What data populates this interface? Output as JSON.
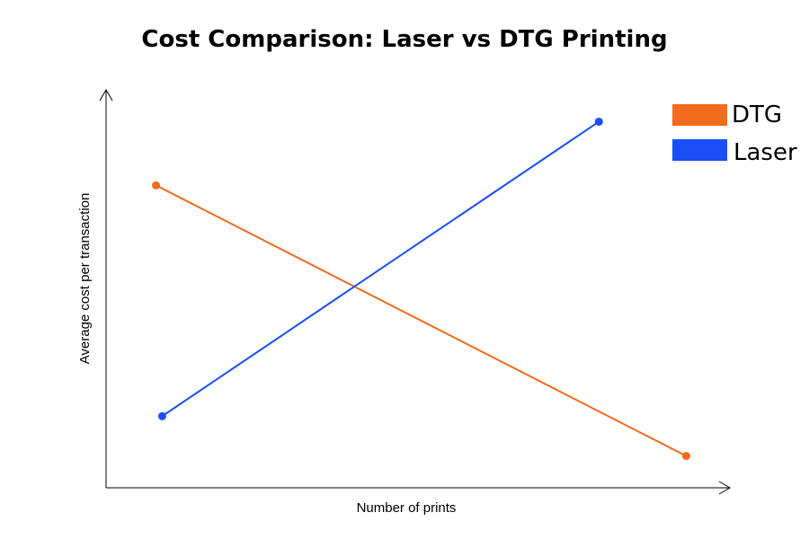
{
  "chart_data": {
    "type": "line",
    "title": "Cost Comparison: Laser vs DTG Printing",
    "xlabel": "Number of prints",
    "ylabel": "Average cost per transaction",
    "xlim": [
      0,
      10
    ],
    "ylim": [
      0,
      10
    ],
    "x_ticks_shown": false,
    "y_ticks_shown": false,
    "grid": false,
    "legend_position": "top-right",
    "series": [
      {
        "name": "DTG",
        "color": "#f26b1d",
        "points": [
          {
            "x": 0.8,
            "y": 7.6
          },
          {
            "x": 9.3,
            "y": 0.8
          }
        ]
      },
      {
        "name": "Laser",
        "color": "#1a4ff5",
        "points": [
          {
            "x": 0.9,
            "y": 1.8
          },
          {
            "x": 7.9,
            "y": 9.2
          }
        ]
      }
    ]
  }
}
